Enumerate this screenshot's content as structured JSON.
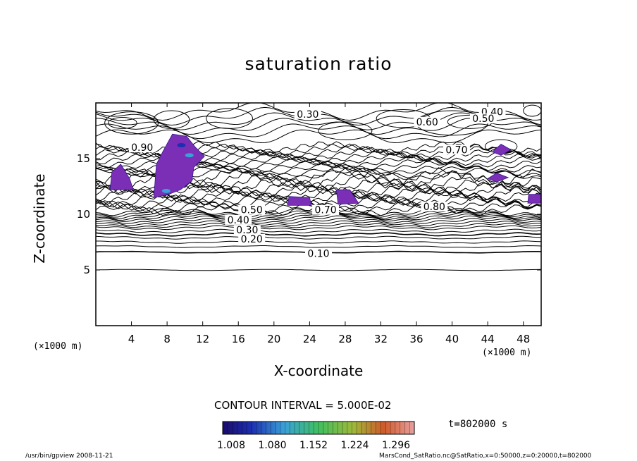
{
  "chart_data": {
    "type": "contour",
    "title": "saturation ratio",
    "xlabel": "X-coordinate",
    "ylabel": "Z-coordinate",
    "x_unit": "(×1000 m)",
    "xlim": [
      0,
      50
    ],
    "ylim": [
      0,
      20
    ],
    "x_ticks": [
      4,
      8,
      12,
      16,
      20,
      24,
      28,
      32,
      36,
      40,
      44,
      48
    ],
    "y_ticks": [
      5,
      10,
      15
    ],
    "contour_interval_text": "CONTOUR INTERVAL = 5.000E-02",
    "contour_interval": 0.05,
    "contour_labels": [
      {
        "text": "0.10",
        "x": 25,
        "z": 6.5
      },
      {
        "text": "0.20",
        "x": 17.5,
        "z": 7.8
      },
      {
        "text": "0.30",
        "x": 17,
        "z": 8.6
      },
      {
        "text": "0.40",
        "x": 16,
        "z": 9.5
      },
      {
        "text": "0.50",
        "x": 17.5,
        "z": 10.4
      },
      {
        "text": "0.70",
        "x": 25.8,
        "z": 10.4
      },
      {
        "text": "0.80",
        "x": 38,
        "z": 10.7
      },
      {
        "text": "0.90",
        "x": 5.2,
        "z": 16
      },
      {
        "text": "0.30",
        "x": 23.8,
        "z": 19
      },
      {
        "text": "0.40",
        "x": 44.5,
        "z": 19.2
      },
      {
        "text": "0.50",
        "x": 43.5,
        "z": 18.6
      },
      {
        "text": "0.60",
        "x": 37.2,
        "z": 18.3
      },
      {
        "text": "0.70",
        "x": 40.5,
        "z": 15.8
      }
    ],
    "shaded_levels": [
      1.008,
      1.08,
      1.152,
      1.224,
      1.296
    ],
    "colorbar_labels": [
      "1.008",
      "1.080",
      "1.152",
      "1.224",
      "1.296"
    ],
    "time_label": "t=802000 s"
  },
  "footer": {
    "left": "/usr/bin/gpview   2008-11-21",
    "right": "MarsCond_SatRatio.nc@SatRatio,x=0:50000,z=0:20000,t=802000"
  }
}
